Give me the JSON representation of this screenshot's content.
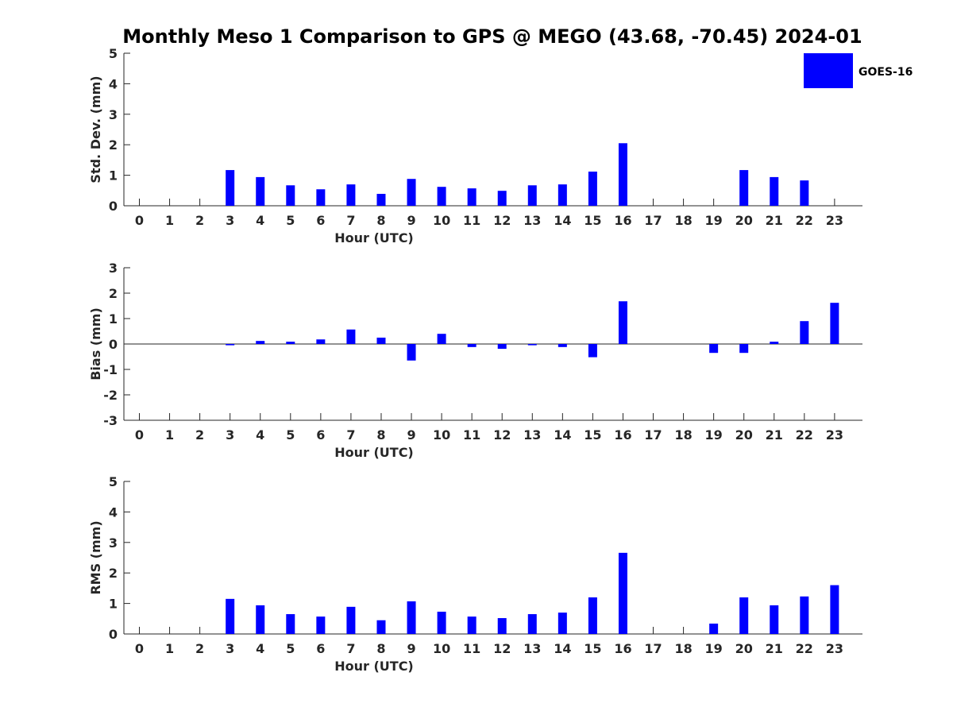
{
  "chart_data": {
    "title": "Monthly Meso 1 Comparison to GPS @ MEGO (43.68, -70.45) 2024-01",
    "legend": {
      "entries": [
        {
          "name": "GOES-16",
          "color": "#0000ff"
        }
      ],
      "placement": "top-right"
    },
    "panels": [
      {
        "type": "bar",
        "title": "",
        "xlabel": "Hour (UTC)",
        "ylabel": "Std. Dev. (mm)",
        "ylim": [
          0,
          5
        ],
        "yticks": [
          0,
          1,
          2,
          3,
          4,
          5
        ],
        "categories": [
          "0",
          "1",
          "2",
          "3",
          "4",
          "5",
          "6",
          "7",
          "8",
          "9",
          "10",
          "11",
          "12",
          "13",
          "14",
          "15",
          "16",
          "17",
          "18",
          "19",
          "20",
          "21",
          "22",
          "23"
        ],
        "series": [
          {
            "name": "GOES-16",
            "color": "#0000ff",
            "values": [
              null,
              null,
              null,
              1.17,
              0.94,
              0.67,
              0.54,
              0.7,
              0.39,
              0.88,
              0.62,
              0.57,
              0.49,
              0.67,
              0.7,
              1.12,
              2.05,
              null,
              null,
              null,
              1.17,
              0.94,
              0.83,
              null
            ]
          }
        ],
        "grid": false
      },
      {
        "type": "bar",
        "title": "",
        "xlabel": "Hour (UTC)",
        "ylabel": "Bias (mm)",
        "ylim": [
          -3,
          3
        ],
        "yticks": [
          -3,
          -2,
          -1,
          0,
          1,
          2,
          3
        ],
        "categories": [
          "0",
          "1",
          "2",
          "3",
          "4",
          "5",
          "6",
          "7",
          "8",
          "9",
          "10",
          "11",
          "12",
          "13",
          "14",
          "15",
          "16",
          "17",
          "18",
          "19",
          "20",
          "21",
          "22",
          "23"
        ],
        "series": [
          {
            "name": "GOES-16",
            "color": "#0000ff",
            "values": [
              null,
              null,
              null,
              -0.05,
              0.12,
              0.09,
              0.18,
              0.57,
              0.25,
              -0.65,
              0.4,
              -0.12,
              -0.19,
              -0.05,
              -0.12,
              -0.52,
              1.68,
              null,
              null,
              -0.35,
              -0.35,
              0.09,
              0.9,
              1.62
            ]
          }
        ],
        "grid": false
      },
      {
        "type": "bar",
        "title": "",
        "xlabel": "Hour (UTC)",
        "ylabel": "RMS (mm)",
        "ylim": [
          0,
          5
        ],
        "yticks": [
          0,
          1,
          2,
          3,
          4,
          5
        ],
        "categories": [
          "0",
          "1",
          "2",
          "3",
          "4",
          "5",
          "6",
          "7",
          "8",
          "9",
          "10",
          "11",
          "12",
          "13",
          "14",
          "15",
          "16",
          "17",
          "18",
          "19",
          "20",
          "21",
          "22",
          "23"
        ],
        "series": [
          {
            "name": "GOES-16",
            "color": "#0000ff",
            "values": [
              null,
              null,
              null,
              1.15,
              0.94,
              0.65,
              0.57,
              0.89,
              0.45,
              1.07,
              0.73,
              0.57,
              0.52,
              0.65,
              0.7,
              1.2,
              2.66,
              null,
              null,
              0.34,
              1.2,
              0.94,
              1.23,
              1.6
            ]
          }
        ],
        "grid": false
      }
    ]
  }
}
